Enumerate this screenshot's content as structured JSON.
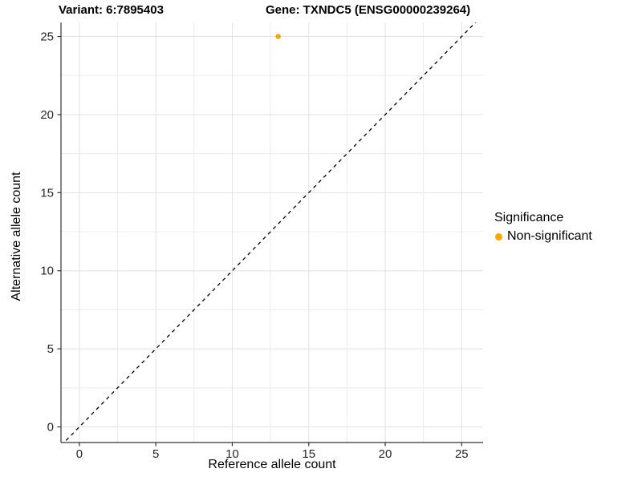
{
  "chart_data": {
    "type": "scatter",
    "title_left": "Variant: 6:7895403",
    "title_right": "Gene: TXNDC5 (ENSG00000239264)",
    "xlabel": "Reference allele count",
    "ylabel": "Alternative allele count",
    "xlim": [
      -1.2,
      26.4
    ],
    "ylim": [
      -1.0,
      25.9
    ],
    "x_ticks": [
      0,
      5,
      10,
      15,
      20,
      25
    ],
    "y_ticks": [
      0,
      5,
      10,
      15,
      20,
      25
    ],
    "grid": true,
    "minor_grid_step": 2.5,
    "series": [
      {
        "name": "Non-significant",
        "color": "#FFA500",
        "points": [
          {
            "x": 13,
            "y": 25
          }
        ]
      }
    ],
    "reference_line": {
      "equation": "y = x",
      "style": "dashed",
      "color": "#000000"
    },
    "legend": {
      "title": "Significance",
      "position": "right"
    }
  },
  "colors": {
    "background": "#FFFFFF",
    "grid_major": "#E2E2E2",
    "grid_minor": "#ECECEC",
    "axis_line": "#333333",
    "tick_mark": "#333333",
    "tick_label": "#262626",
    "point": "#FFA500"
  }
}
